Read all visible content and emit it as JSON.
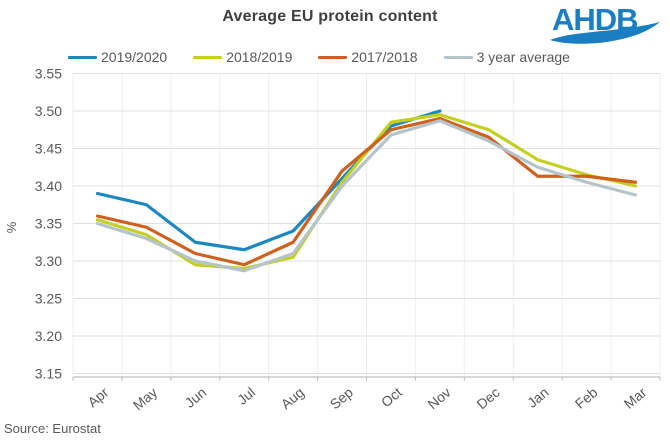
{
  "header": {
    "title": "Average EU protein content",
    "logo_text": "AHDB",
    "logo_color": "#1b7ec2"
  },
  "source": "Source: Eurostat",
  "chart_data": {
    "type": "line",
    "title": "Average EU protein content",
    "xlabel": "",
    "ylabel": "%",
    "ylim": [
      3.15,
      3.55
    ],
    "ytick_step": 0.05,
    "grid": true,
    "legend_position": "top",
    "categories": [
      "Apr",
      "May",
      "Jun",
      "Jul",
      "Aug",
      "Sep",
      "Oct",
      "Nov",
      "Dec",
      "Jan",
      "Feb",
      "Mar"
    ],
    "series": [
      {
        "name": "2019/2020",
        "color": "#1d87c0",
        "values": [
          3.39,
          3.375,
          3.325,
          3.315,
          3.34,
          3.41,
          3.48,
          3.5,
          null,
          null,
          null,
          null
        ]
      },
      {
        "name": "2018/2019",
        "color": "#c3d021",
        "values": [
          3.355,
          3.335,
          3.295,
          3.29,
          3.305,
          3.405,
          3.485,
          3.495,
          3.475,
          3.435,
          3.415,
          3.4
        ]
      },
      {
        "name": "2017/2018",
        "color": "#d0601e",
        "values": [
          3.36,
          3.345,
          3.31,
          3.295,
          3.325,
          3.42,
          3.475,
          3.49,
          3.465,
          3.413,
          3.413,
          3.405
        ]
      },
      {
        "name": "3 year average",
        "color": "#b5c4cb",
        "values": [
          3.35,
          3.33,
          3.3,
          3.287,
          3.31,
          3.4,
          3.468,
          3.487,
          3.46,
          3.425,
          3.405,
          3.388
        ]
      }
    ],
    "style": {
      "axis_color": "#bfbfbf",
      "hgrid_color": "#dde2e5",
      "vgrid_color": "#eceff1",
      "tick_label_color": "#595959",
      "line_width": 3.2
    }
  }
}
